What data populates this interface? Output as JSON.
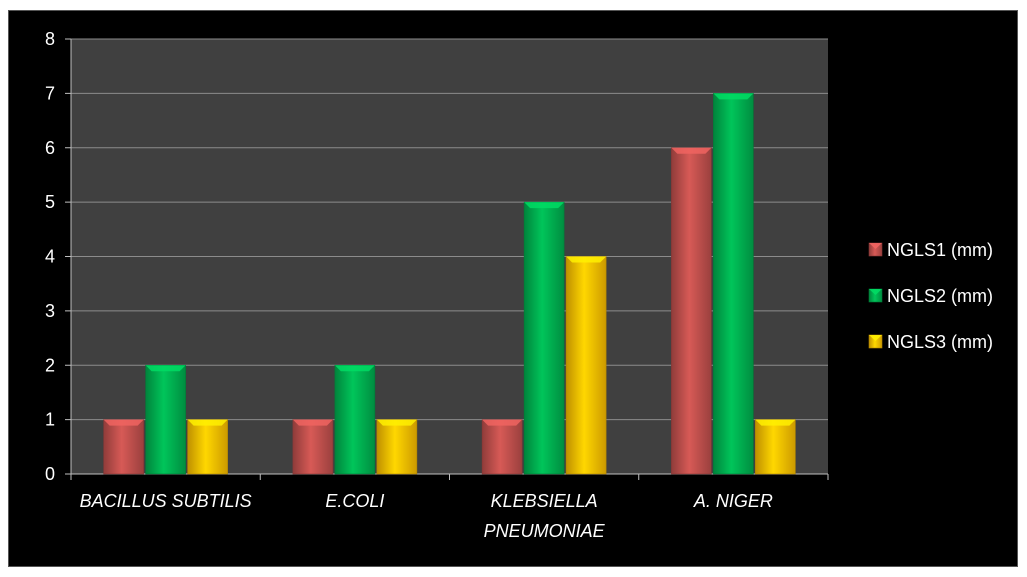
{
  "chart_data": {
    "type": "bar",
    "title": "",
    "xlabel": "",
    "ylabel": "",
    "categories": [
      [
        "BACILLUS SUBTILIS"
      ],
      [
        "E.COLI"
      ],
      [
        "KLEBSIELLA",
        "PNEUMONIAE"
      ],
      [
        "A. NIGER"
      ]
    ],
    "series": [
      {
        "name": "NGLS1 (mm)",
        "values": [
          1,
          1,
          1,
          6
        ],
        "color": "#c0504d"
      },
      {
        "name": "NGLS2 (mm)",
        "values": [
          2,
          2,
          5,
          7
        ],
        "color": "#00b050"
      },
      {
        "name": "NGLS3 (mm)",
        "values": [
          1,
          1,
          4,
          1
        ],
        "color": "#ffc000"
      }
    ],
    "ylim": [
      0,
      8
    ],
    "yticks": [
      "0",
      "1",
      "2",
      "3",
      "4",
      "5",
      "6",
      "7",
      "8"
    ],
    "grid": true,
    "legend_position": "right",
    "plot_background": "#404040",
    "gridline_color": "#8c8c8c"
  }
}
